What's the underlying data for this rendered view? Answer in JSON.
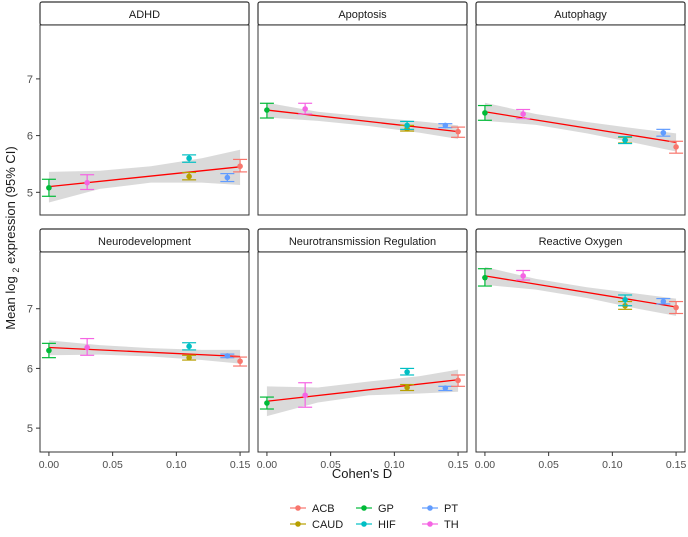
{
  "chart_data": {
    "type": "scatter",
    "figure": {
      "xlabel": "Cohen's D",
      "ylabel_parts": [
        "Mean log ",
        "2",
        " expression (95% CI)"
      ],
      "x_ticks": [
        0.0,
        0.05,
        0.1,
        0.15
      ],
      "x_tick_labels": [
        "0.00",
        "0.05",
        "0.10",
        "0.15"
      ],
      "xlim": [
        -0.007,
        0.157
      ],
      "rows": [
        {
          "y_ticks": [
            5,
            6,
            7
          ],
          "y_tick_labels": [
            "5",
            "6",
            "7"
          ],
          "ylim": [
            4.6,
            7.95
          ]
        },
        {
          "y_ticks": [
            5,
            6,
            7
          ],
          "y_tick_labels": [
            "5",
            "6",
            "7"
          ],
          "ylim": [
            4.6,
            7.95
          ]
        }
      ]
    },
    "legend": {
      "position": "bottom",
      "entries": [
        {
          "key": "ACB",
          "label": "ACB",
          "color": "#F8766D"
        },
        {
          "key": "GP",
          "label": "GP",
          "color": "#00BA38"
        },
        {
          "key": "PT",
          "label": "PT",
          "color": "#619CFF"
        },
        {
          "key": "CAUD",
          "label": "CAUD",
          "color": "#B79F00"
        },
        {
          "key": "HIF",
          "label": "HIF",
          "color": "#00BFC4"
        },
        {
          "key": "TH",
          "label": "TH",
          "color": "#F564E3"
        }
      ]
    },
    "fit_line_color": "#FF0000",
    "ci_band_color": "#D3D3D3",
    "panels": [
      {
        "title": "ADHD",
        "fit": {
          "intercept": 5.1,
          "slope": 2.33
        },
        "band": [
          {
            "x": 0.0,
            "lo": 4.82,
            "hi": 5.36
          },
          {
            "x": 0.04,
            "lo": 5.06,
            "hi": 5.38
          },
          {
            "x": 0.08,
            "lo": 5.17,
            "hi": 5.46
          },
          {
            "x": 0.12,
            "lo": 5.17,
            "hi": 5.6
          },
          {
            "x": 0.15,
            "lo": 5.13,
            "hi": 5.75
          }
        ],
        "points": [
          {
            "group": "GP",
            "x": 0.0,
            "y": 5.08,
            "lo": 4.93,
            "hi": 5.23
          },
          {
            "group": "TH",
            "x": 0.03,
            "y": 5.17,
            "lo": 5.05,
            "hi": 5.31
          },
          {
            "group": "CAUD",
            "x": 0.11,
            "y": 5.28,
            "lo": 5.22,
            "hi": 5.35
          },
          {
            "group": "HIF",
            "x": 0.11,
            "y": 5.6,
            "lo": 5.53,
            "hi": 5.66
          },
          {
            "group": "PT",
            "x": 0.14,
            "y": 5.26,
            "lo": 5.19,
            "hi": 5.33
          },
          {
            "group": "ACB",
            "x": 0.15,
            "y": 5.46,
            "lo": 5.36,
            "hi": 5.58
          }
        ]
      },
      {
        "title": "Apoptosis",
        "fit": {
          "intercept": 6.45,
          "slope": -2.53
        },
        "band": [
          {
            "x": 0.0,
            "lo": 6.32,
            "hi": 6.58
          },
          {
            "x": 0.04,
            "lo": 6.26,
            "hi": 6.42
          },
          {
            "x": 0.08,
            "lo": 6.17,
            "hi": 6.33
          },
          {
            "x": 0.12,
            "lo": 6.05,
            "hi": 6.25
          },
          {
            "x": 0.15,
            "lo": 5.94,
            "hi": 6.18
          }
        ],
        "points": [
          {
            "group": "GP",
            "x": 0.0,
            "y": 6.45,
            "lo": 6.31,
            "hi": 6.57
          },
          {
            "group": "TH",
            "x": 0.03,
            "y": 6.47,
            "lo": 6.38,
            "hi": 6.57
          },
          {
            "group": "CAUD",
            "x": 0.11,
            "y": 6.12,
            "lo": 6.08,
            "hi": 6.18
          },
          {
            "group": "HIF",
            "x": 0.11,
            "y": 6.18,
            "lo": 6.11,
            "hi": 6.25
          },
          {
            "group": "PT",
            "x": 0.14,
            "y": 6.18,
            "lo": 6.14,
            "hi": 6.21
          },
          {
            "group": "ACB",
            "x": 0.15,
            "y": 6.07,
            "lo": 5.97,
            "hi": 6.15
          }
        ]
      },
      {
        "title": "Autophagy",
        "fit": {
          "intercept": 6.42,
          "slope": -3.6
        },
        "band": [
          {
            "x": 0.0,
            "lo": 6.26,
            "hi": 6.58
          },
          {
            "x": 0.04,
            "lo": 6.19,
            "hi": 6.38
          },
          {
            "x": 0.08,
            "lo": 6.04,
            "hi": 6.24
          },
          {
            "x": 0.12,
            "lo": 5.86,
            "hi": 6.12
          },
          {
            "x": 0.15,
            "lo": 5.72,
            "hi": 6.04
          }
        ],
        "points": [
          {
            "group": "GP",
            "x": 0.0,
            "y": 6.4,
            "lo": 6.27,
            "hi": 6.53
          },
          {
            "group": "TH",
            "x": 0.03,
            "y": 6.38,
            "lo": 6.3,
            "hi": 6.46
          },
          {
            "group": "CAUD",
            "x": 0.11,
            "y": 5.92,
            "lo": 5.87,
            "hi": 5.97
          },
          {
            "group": "HIF",
            "x": 0.11,
            "y": 5.92,
            "lo": 5.86,
            "hi": 5.98
          },
          {
            "group": "PT",
            "x": 0.14,
            "y": 6.05,
            "lo": 5.99,
            "hi": 6.11
          },
          {
            "group": "ACB",
            "x": 0.15,
            "y": 5.8,
            "lo": 5.69,
            "hi": 5.9
          }
        ]
      },
      {
        "title": "Neurodevelopment",
        "fit": {
          "intercept": 6.35,
          "slope": -1.0
        },
        "band": [
          {
            "x": 0.0,
            "lo": 6.22,
            "hi": 6.47
          },
          {
            "x": 0.04,
            "lo": 6.23,
            "hi": 6.39
          },
          {
            "x": 0.08,
            "lo": 6.2,
            "hi": 6.34
          },
          {
            "x": 0.12,
            "lo": 6.14,
            "hi": 6.31
          },
          {
            "x": 0.15,
            "lo": 6.08,
            "hi": 6.31
          }
        ],
        "points": [
          {
            "group": "GP",
            "x": 0.0,
            "y": 6.3,
            "lo": 6.18,
            "hi": 6.42
          },
          {
            "group": "TH",
            "x": 0.03,
            "y": 6.35,
            "lo": 6.22,
            "hi": 6.5
          },
          {
            "group": "CAUD",
            "x": 0.11,
            "y": 6.18,
            "lo": 6.14,
            "hi": 6.22
          },
          {
            "group": "HIF",
            "x": 0.11,
            "y": 6.37,
            "lo": 6.31,
            "hi": 6.43
          },
          {
            "group": "PT",
            "x": 0.14,
            "y": 6.21,
            "lo": 6.18,
            "hi": 6.24
          },
          {
            "group": "ACB",
            "x": 0.15,
            "y": 6.12,
            "lo": 6.04,
            "hi": 6.19
          }
        ]
      },
      {
        "title": "Neurotransmission Regulation",
        "fit": {
          "intercept": 5.45,
          "slope": 2.4
        },
        "band": [
          {
            "x": 0.0,
            "lo": 5.2,
            "hi": 5.7
          },
          {
            "x": 0.04,
            "lo": 5.43,
            "hi": 5.68
          },
          {
            "x": 0.08,
            "lo": 5.55,
            "hi": 5.78
          },
          {
            "x": 0.12,
            "lo": 5.58,
            "hi": 5.87
          },
          {
            "x": 0.15,
            "lo": 5.61,
            "hi": 5.98
          }
        ],
        "points": [
          {
            "group": "GP",
            "x": 0.0,
            "y": 5.42,
            "lo": 5.32,
            "hi": 5.52
          },
          {
            "group": "TH",
            "x": 0.03,
            "y": 5.55,
            "lo": 5.35,
            "hi": 5.76
          },
          {
            "group": "CAUD",
            "x": 0.11,
            "y": 5.68,
            "lo": 5.63,
            "hi": 5.73
          },
          {
            "group": "HIF",
            "x": 0.11,
            "y": 5.94,
            "lo": 5.89,
            "hi": 6.0
          },
          {
            "group": "PT",
            "x": 0.14,
            "y": 5.67,
            "lo": 5.63,
            "hi": 5.7
          },
          {
            "group": "ACB",
            "x": 0.15,
            "y": 5.8,
            "lo": 5.7,
            "hi": 5.89
          }
        ]
      },
      {
        "title": "Reactive Oxygen",
        "fit": {
          "intercept": 7.55,
          "slope": -3.47
        },
        "band": [
          {
            "x": 0.0,
            "lo": 7.4,
            "hi": 7.7
          },
          {
            "x": 0.04,
            "lo": 7.32,
            "hi": 7.5
          },
          {
            "x": 0.08,
            "lo": 7.18,
            "hi": 7.36
          },
          {
            "x": 0.12,
            "lo": 7.0,
            "hi": 7.25
          },
          {
            "x": 0.15,
            "lo": 6.88,
            "hi": 7.17
          }
        ],
        "points": [
          {
            "group": "GP",
            "x": 0.0,
            "y": 7.52,
            "lo": 7.38,
            "hi": 7.67
          },
          {
            "group": "TH",
            "x": 0.03,
            "y": 7.55,
            "lo": 7.48,
            "hi": 7.64
          },
          {
            "group": "CAUD",
            "x": 0.11,
            "y": 7.05,
            "lo": 6.99,
            "hi": 7.12
          },
          {
            "group": "HIF",
            "x": 0.11,
            "y": 7.15,
            "lo": 7.05,
            "hi": 7.23
          },
          {
            "group": "PT",
            "x": 0.14,
            "y": 7.12,
            "lo": 7.08,
            "hi": 7.17
          },
          {
            "group": "ACB",
            "x": 0.15,
            "y": 7.02,
            "lo": 6.92,
            "hi": 7.12
          }
        ]
      }
    ]
  }
}
